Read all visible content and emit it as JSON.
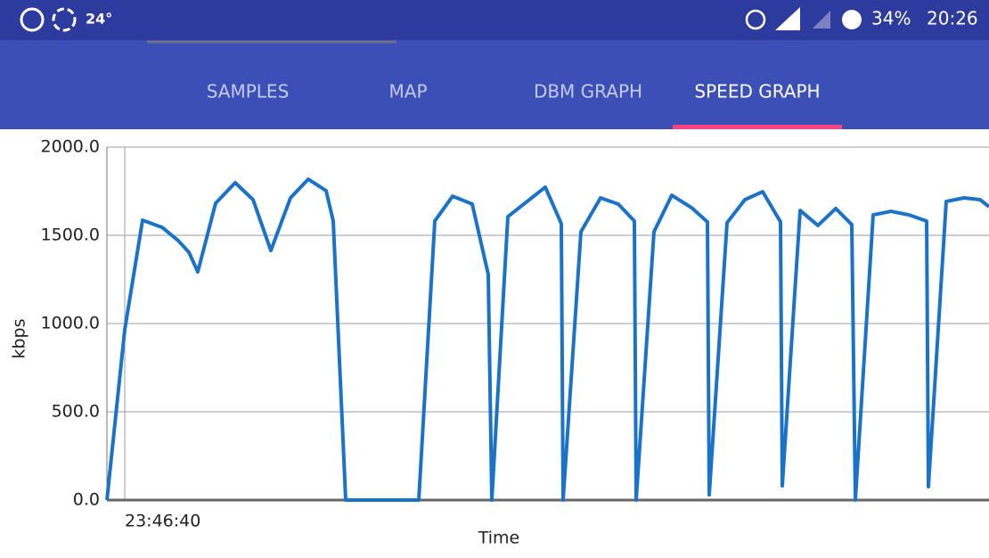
{
  "status_bar": {
    "temperature": "24°",
    "battery": "34%",
    "clock": "20:26"
  },
  "tabs": [
    "SAMPLES",
    "MAP",
    "DBM GRAPH",
    "SPEED GRAPH"
  ],
  "active_tab": 3,
  "chart_data": {
    "type": "line",
    "xlabel": "Time",
    "ylabel": "kbps",
    "x": [
      0,
      1,
      2,
      3.1,
      4,
      4.6,
      5.1,
      6.1,
      7.2,
      8.2,
      9.2,
      10.3,
      11.3,
      12.3,
      12.7,
      13.4,
      17.5,
      18.4,
      19.4,
      20.5,
      21.4,
      21.6,
      22.5,
      24.6,
      25.5,
      25.6,
      26.6,
      27.7,
      28.7,
      29.6,
      29.7,
      30.7,
      31.7,
      32.8,
      33.7,
      33.8,
      34.8,
      35.8,
      36.8,
      37.8,
      37.9,
      38.9,
      39.9,
      40.9,
      41.8,
      42,
      43,
      44,
      45,
      46,
      46.1,
      47.1,
      48.1,
      49,
      49.5
    ],
    "series": [
      {
        "name": "speed",
        "color": "#1a73c8",
        "values": [
          0,
          965,
          1586,
          1545,
          1470,
          1404,
          1293,
          1682,
          1798,
          1702,
          1414,
          1712,
          1818,
          1753,
          1581,
          0,
          0,
          1581,
          1722,
          1677,
          1278,
          0,
          1606,
          1773,
          1566,
          0,
          1520,
          1712,
          1677,
          1581,
          0,
          1520,
          1727,
          1657,
          1576,
          30,
          1571,
          1702,
          1747,
          1576,
          81,
          1641,
          1556,
          1652,
          1561,
          0,
          1616,
          1636,
          1616,
          1581,
          76,
          1692,
          1712,
          1702,
          1662
        ]
      }
    ],
    "xlim": [
      0,
      49.5
    ],
    "xticks": [
      {
        "value": 1,
        "label": "23:46:40"
      }
    ],
    "ylim": [
      0,
      2000
    ],
    "yticks": [
      {
        "value": 0,
        "label": "0.0"
      },
      {
        "value": 500,
        "label": "500.0"
      },
      {
        "value": 1000,
        "label": "1000.0"
      },
      {
        "value": 1500,
        "label": "1500.0"
      },
      {
        "value": 2000,
        "label": "2000.0"
      }
    ],
    "grid": true
  }
}
